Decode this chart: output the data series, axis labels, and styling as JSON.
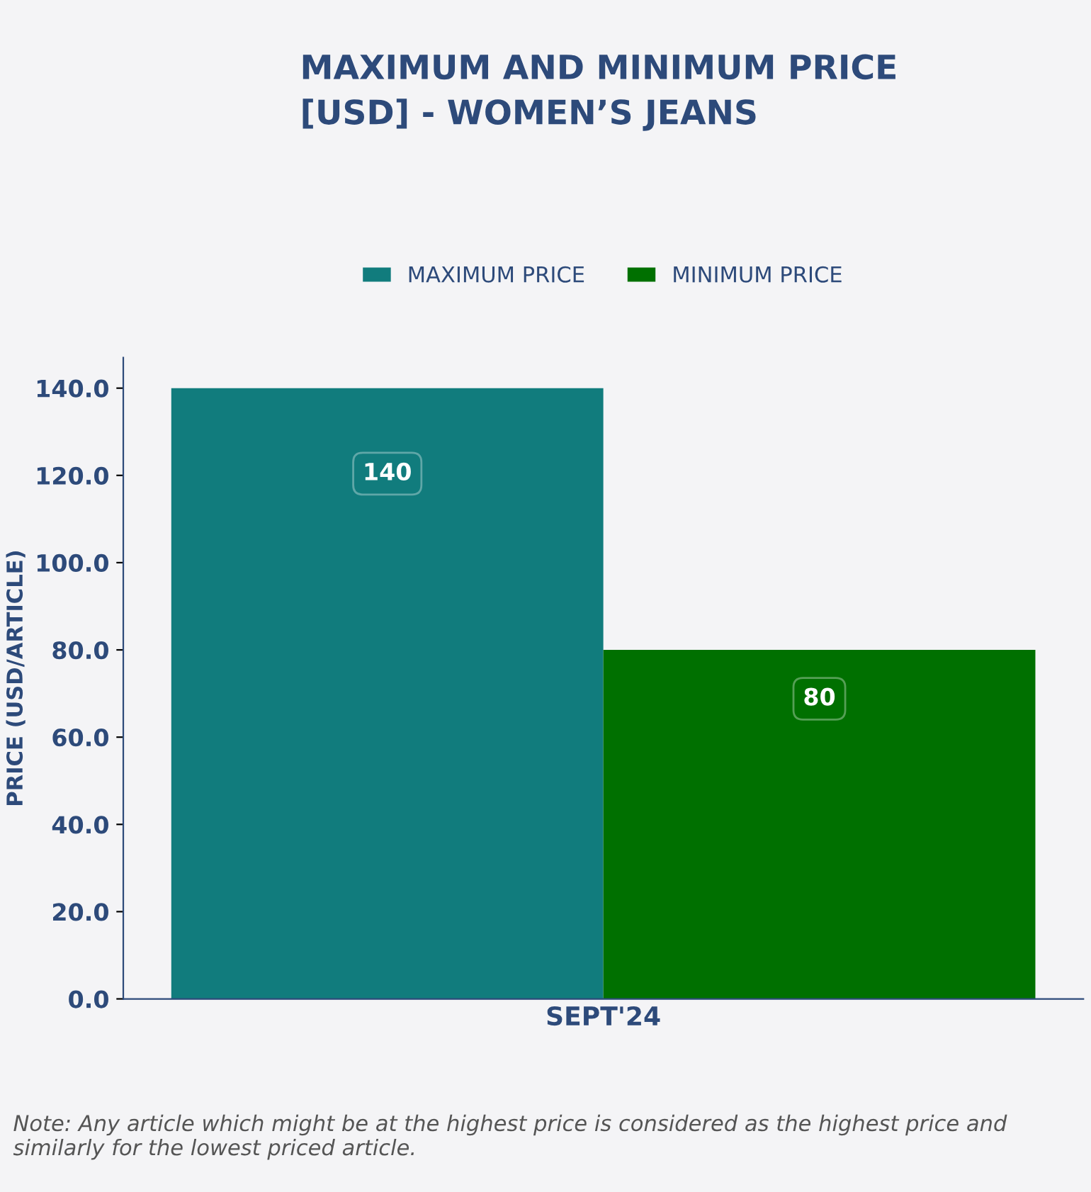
{
  "chart_data": {
    "type": "bar",
    "title": "MAXIMUM AND MINIMUM PRICE\n[USD] - WOMEN’S JEANS",
    "categories": [
      "SEPT'24"
    ],
    "series": [
      {
        "name": "MAXIMUM PRICE",
        "color": "#117c7d",
        "values": [
          140
        ]
      },
      {
        "name": "MINIMUM PRICE",
        "color": "#007000",
        "values": [
          80
        ]
      }
    ],
    "ylabel": "PRICE (USD/ARTICLE)",
    "ylim": [
      0,
      147
    ],
    "yticks": [
      {
        "value": 0,
        "label": "0.0"
      },
      {
        "value": 20,
        "label": "20.0"
      },
      {
        "value": 40,
        "label": "40.0"
      },
      {
        "value": 60,
        "label": "60.0"
      },
      {
        "value": 80,
        "label": "80.0"
      },
      {
        "value": 100,
        "label": "100.0"
      },
      {
        "value": 120,
        "label": "120.0"
      },
      {
        "value": 140,
        "label": "140.0"
      }
    ],
    "data_labels": true,
    "legend": "top",
    "grid": false,
    "annotations": [
      "Note: Any article which might be at the highest price is considered as the highest price and similarly for the lowest priced article."
    ]
  }
}
